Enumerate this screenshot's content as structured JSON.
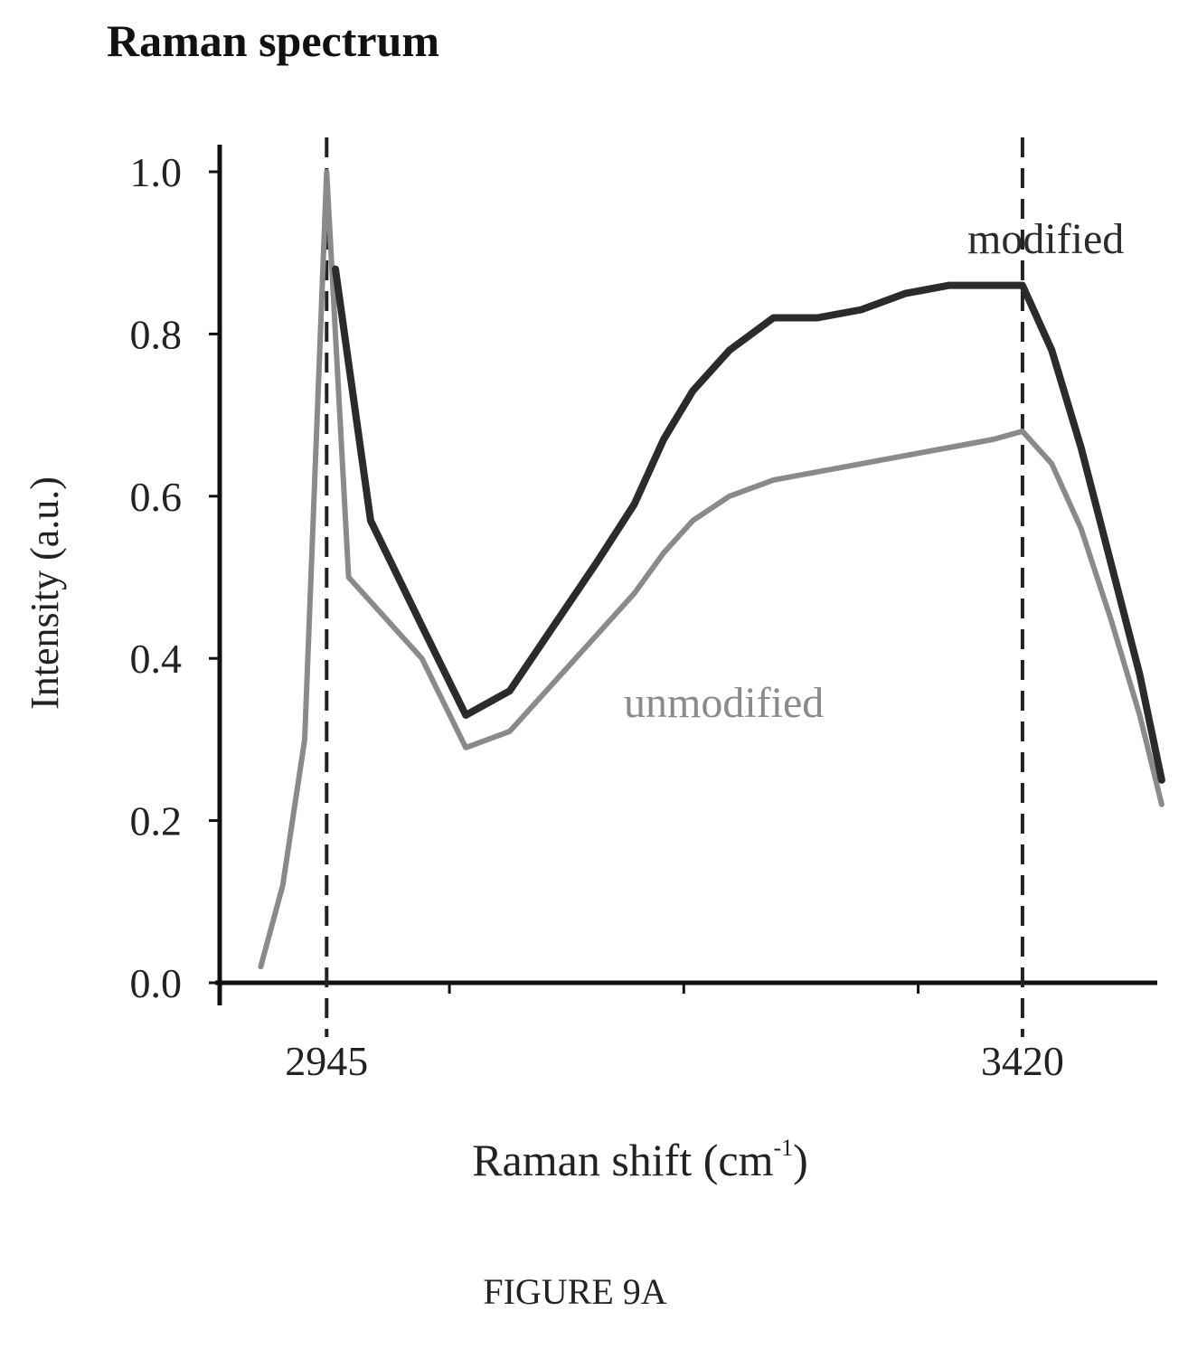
{
  "figure_caption": "FIGURE 9A",
  "chart_data": {
    "type": "line",
    "title": "Raman spectrum",
    "xlabel_main": "Raman shift (cm",
    "xlabel_sup": "-1",
    "xlabel_close": ")",
    "ylabel": "Intensity (a.u.)",
    "xlim": [
      2872,
      3512
    ],
    "ylim": [
      0.0,
      1.0
    ],
    "y_ticks": [
      "0.0",
      "0.2",
      "0.4",
      "0.6",
      "0.8",
      "1.0"
    ],
    "x_ticks": [
      "2945",
      "3420"
    ],
    "reference_lines": [
      2945,
      3420
    ],
    "grid": false,
    "colors": {
      "modified": "#2b2b2b",
      "unmodified": "#8a8a8a",
      "axis": "#111111",
      "reference": "#222222"
    },
    "series": [
      {
        "name": "modified",
        "x": [
          2951,
          2975,
          3010,
          3040,
          3070,
          3100,
          3130,
          3155,
          3175,
          3195,
          3220,
          3250,
          3280,
          3310,
          3340,
          3370,
          3400,
          3420,
          3440,
          3460,
          3480,
          3500,
          3515
        ],
        "y": [
          0.88,
          0.57,
          0.44,
          0.33,
          0.36,
          0.44,
          0.52,
          0.59,
          0.67,
          0.73,
          0.78,
          0.82,
          0.82,
          0.83,
          0.85,
          0.86,
          0.86,
          0.86,
          0.78,
          0.66,
          0.52,
          0.38,
          0.25
        ]
      },
      {
        "name": "unmodified",
        "x": [
          2900,
          2915,
          2930,
          2945,
          2960,
          2975,
          3010,
          3040,
          3070,
          3100,
          3130,
          3155,
          3175,
          3195,
          3220,
          3250,
          3280,
          3310,
          3340,
          3370,
          3400,
          3420,
          3440,
          3460,
          3480,
          3500,
          3515
        ],
        "y": [
          0.02,
          0.12,
          0.3,
          1.0,
          0.5,
          0.47,
          0.4,
          0.29,
          0.31,
          0.37,
          0.43,
          0.48,
          0.53,
          0.57,
          0.6,
          0.62,
          0.63,
          0.64,
          0.65,
          0.66,
          0.67,
          0.68,
          0.64,
          0.56,
          0.45,
          0.33,
          0.22
        ]
      }
    ]
  }
}
